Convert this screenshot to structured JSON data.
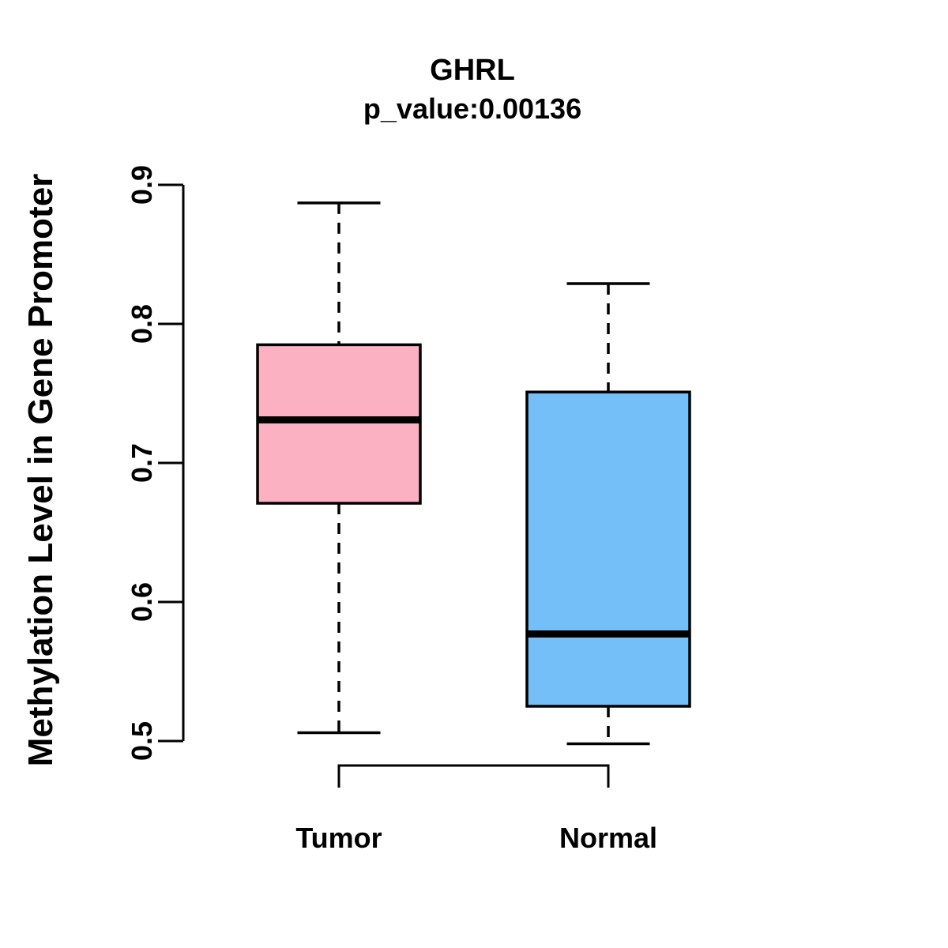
{
  "chart_data": {
    "type": "boxplot",
    "title": "GHRL",
    "subtitle": "p_value:0.00136",
    "p_value": 0.00136,
    "ylabel": "Methylation Level in Gene Promoter",
    "xlabel": "",
    "ylim": [
      0.47,
      0.9
    ],
    "yticks": [
      0.5,
      0.6,
      0.7,
      0.8,
      0.9
    ],
    "ytick_labels": [
      "0.5",
      "0.6",
      "0.7",
      "0.8",
      "0.9"
    ],
    "categories": [
      "Tumor",
      "Normal"
    ],
    "grid": false,
    "legend": false,
    "comparison_bracket": true,
    "series": [
      {
        "name": "Tumor",
        "color": "#FCB1C2",
        "whisker_low": 0.506,
        "q1": 0.671,
        "median": 0.731,
        "q3": 0.785,
        "whisker_high": 0.887
      },
      {
        "name": "Normal",
        "color": "#74BFF7",
        "whisker_low": 0.498,
        "q1": 0.525,
        "median": 0.577,
        "q3": 0.751,
        "whisker_high": 0.829
      }
    ],
    "colors": {
      "stroke": "#000000",
      "background": "#FFFFFF"
    }
  }
}
